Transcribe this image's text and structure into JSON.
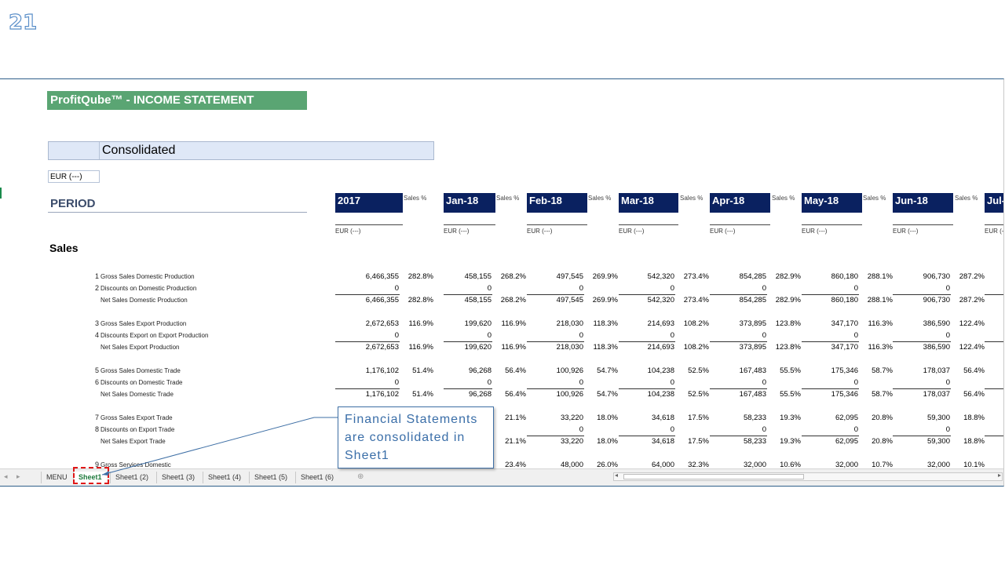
{
  "slide_number": "21",
  "sheet": {
    "title": "ProfitQube™ - INCOME STATEMENT",
    "entity": "Consolidated",
    "currency_box": "EUR (---)",
    "period_label": "PERIOD",
    "section_sales": "Sales",
    "pct_label": "Sales %",
    "currency_label": "EUR (---)",
    "columns": [
      "2017",
      "Jan-18",
      "Feb-18",
      "Mar-18",
      "Apr-18",
      "May-18",
      "Jun-18",
      "Jul-"
    ],
    "rows": [
      {
        "num": "1",
        "label": "Gross Sales Domestic Production",
        "values": [
          "6,466,355",
          "458,155",
          "497,545",
          "542,320",
          "854,285",
          "860,180",
          "906,730"
        ],
        "pcts": [
          "282.8%",
          "268.2%",
          "269.9%",
          "273.4%",
          "282.9%",
          "288.1%",
          "287.2%"
        ]
      },
      {
        "num": "2",
        "label": "Discounts on Domestic Production",
        "values": [
          "0",
          "0",
          "0",
          "0",
          "0",
          "0",
          "0"
        ],
        "pcts": [
          "",
          "",
          "",
          "",
          "",
          "",
          ""
        ]
      },
      {
        "num": "",
        "label": "Net Sales Domestic Production",
        "values": [
          "6,466,355",
          "458,155",
          "497,545",
          "542,320",
          "854,285",
          "860,180",
          "906,730"
        ],
        "pcts": [
          "282.8%",
          "268.2%",
          "269.9%",
          "273.4%",
          "282.9%",
          "288.1%",
          "287.2%"
        ]
      },
      {
        "num": "3",
        "label": "Gross Sales Export Production",
        "values": [
          "2,672,653",
          "199,620",
          "218,030",
          "214,693",
          "373,895",
          "347,170",
          "386,590"
        ],
        "pcts": [
          "116.9%",
          "116.9%",
          "118.3%",
          "108.2%",
          "123.8%",
          "116.3%",
          "122.4%"
        ]
      },
      {
        "num": "4",
        "label": "Discounts Export on Export Production",
        "values": [
          "0",
          "0",
          "0",
          "0",
          "0",
          "0",
          "0"
        ],
        "pcts": [
          "",
          "",
          "",
          "",
          "",
          "",
          ""
        ]
      },
      {
        "num": "",
        "label": "Net Sales Export Production",
        "values": [
          "2,672,653",
          "199,620",
          "218,030",
          "214,693",
          "373,895",
          "347,170",
          "386,590"
        ],
        "pcts": [
          "116.9%",
          "116.9%",
          "118.3%",
          "108.2%",
          "123.8%",
          "116.3%",
          "122.4%"
        ]
      },
      {
        "num": "5",
        "label": "Gross Sales Domestic Trade",
        "values": [
          "1,176,102",
          "96,268",
          "100,926",
          "104,238",
          "167,483",
          "175,346",
          "178,037"
        ],
        "pcts": [
          "51.4%",
          "56.4%",
          "54.7%",
          "52.5%",
          "55.5%",
          "58.7%",
          "56.4%"
        ]
      },
      {
        "num": "6",
        "label": "Discounts on Domestic Trade",
        "values": [
          "0",
          "0",
          "0",
          "0",
          "0",
          "0",
          "0"
        ],
        "pcts": [
          "",
          "",
          "",
          "",
          "",
          "",
          ""
        ]
      },
      {
        "num": "",
        "label": "Net Sales Domestic Trade",
        "values": [
          "1,176,102",
          "96,268",
          "100,926",
          "104,238",
          "167,483",
          "175,346",
          "178,037"
        ],
        "pcts": [
          "51.4%",
          "56.4%",
          "54.7%",
          "52.5%",
          "55.5%",
          "58.7%",
          "56.4%"
        ]
      },
      {
        "num": "7",
        "label": "Gross Sales Export Trade",
        "values": [
          "",
          "",
          "33,220",
          "34,618",
          "58,233",
          "62,095",
          "59,300"
        ],
        "pcts": [
          "",
          "21.1%",
          "18.0%",
          "17.5%",
          "19.3%",
          "20.8%",
          "18.8%"
        ]
      },
      {
        "num": "8",
        "label": "Discounts on Export Trade",
        "values": [
          "",
          "",
          "0",
          "0",
          "0",
          "0",
          "0"
        ],
        "pcts": [
          "",
          "",
          "",
          "",
          "",
          "",
          ""
        ]
      },
      {
        "num": "",
        "label": "Net Sales Export Trade",
        "values": [
          "",
          "",
          "33,220",
          "34,618",
          "58,233",
          "62,095",
          "59,300"
        ],
        "pcts": [
          "",
          "21.1%",
          "18.0%",
          "17.5%",
          "19.3%",
          "20.8%",
          "18.8%"
        ]
      },
      {
        "num": "9",
        "label": "Gross Services Domestic",
        "values": [
          "",
          "",
          "48,000",
          "64,000",
          "32,000",
          "32,000",
          "32,000"
        ],
        "pcts": [
          "",
          "23.4%",
          "26.0%",
          "32.3%",
          "10.6%",
          "10.7%",
          "10.1%"
        ]
      }
    ]
  },
  "tabs": [
    "MENU",
    "Sheet1",
    "Sheet1 (2)",
    "Sheet1 (3)",
    "Sheet1 (4)",
    "Sheet1 (5)",
    "Sheet1 (6)"
  ],
  "active_tab": "Sheet1",
  "callout": "Financial Statements are consolidated in Sheet1"
}
